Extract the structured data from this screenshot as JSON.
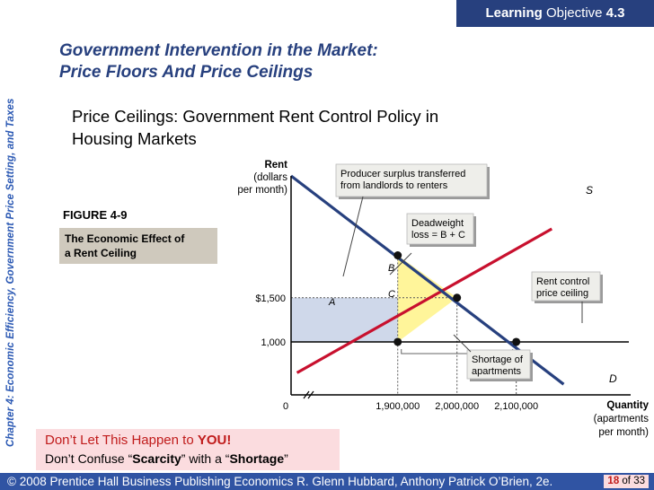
{
  "header": {
    "lo_word1": "Learning",
    "lo_word2": "Objective",
    "lo_num": "4.3"
  },
  "sidebar": {
    "chapter_label": "Chapter 4:  Economic Efficiency, Government Price Setting, and Taxes"
  },
  "slide": {
    "title_line1": "Government Intervention in the Market:",
    "title_line2": "Price Floors And Price Ceilings",
    "subtitle_line1": "Price Ceilings:  Government Rent Control Policy in",
    "subtitle_line2": "Housing Markets",
    "figure_number": "FIGURE 4-9",
    "figure_caption_line1": "The Economic Effect of",
    "figure_caption_line2": "a Rent Ceiling"
  },
  "warning": {
    "line1_prefix": "Don’t Let This Happen to ",
    "line1_bold": "YOU!",
    "line2_a": "Don’t Confuse “",
    "line2_b": "Scarcity",
    "line2_c": "” with a “",
    "line2_d": "Shortage",
    "line2_e": "”"
  },
  "footer": {
    "copyright": "© 2008 Prentice Hall Business Publishing   Economics  R. Glenn Hubbard, Anthony Patrick O’Brien, 2e.",
    "page_current": "18",
    "page_sep": " of ",
    "page_total": "33"
  },
  "chart_data": {
    "type": "line",
    "ylabel_lines": [
      "Rent",
      "(dollars",
      "per month)"
    ],
    "xlabel_lines": [
      "Quantity",
      "(apartments",
      "per month)"
    ],
    "x_ticks": [
      {
        "value": 0,
        "label": "0"
      },
      {
        "value": 1900000,
        "label": "1,900,000"
      },
      {
        "value": 2000000,
        "label": "2,000,000"
      },
      {
        "value": 2100000,
        "label": "2,100,000"
      }
    ],
    "y_ticks": [
      {
        "value": 1500,
        "label": "$1,500"
      },
      {
        "value": 1000,
        "label": "1,000"
      }
    ],
    "series": [
      {
        "name": "S",
        "color": "#c8102e",
        "points": [
          [
            1730000,
            650
          ],
          [
            2160000,
            2280
          ]
        ]
      },
      {
        "name": "D",
        "color": "#27407e",
        "points": [
          [
            1720000,
            2880
          ],
          [
            2180000,
            520
          ]
        ]
      },
      {
        "name": "",
        "color": "#000000",
        "points": [
          [
            1720000,
            1000
          ],
          [
            2290000,
            1000
          ]
        ]
      }
    ],
    "points_marked": [
      {
        "x": 1900000,
        "y": 1000
      },
      {
        "x": 1900000,
        "y": 1980
      },
      {
        "x": 2000000,
        "y": 1500
      },
      {
        "x": 2100000,
        "y": 1000
      }
    ],
    "areas": [
      {
        "label": "A",
        "color": "#cfd8ea",
        "description": "Producer surplus transferred from landlords to renters"
      },
      {
        "label": "B",
        "color": "#fff59a"
      },
      {
        "label": "C",
        "color": "#fff59a"
      }
    ],
    "callouts": {
      "producer_surplus": [
        "Producer surplus transferred",
        "from landlords to renters"
      ],
      "deadweight_line1": "Deadweight",
      "deadweight_line2": "loss = B + C",
      "rent_control": [
        "Rent control",
        "price ceiling"
      ],
      "shortage": [
        "Shortage of",
        "apartments"
      ]
    },
    "series_labels": {
      "supply": "S",
      "demand": "D"
    },
    "area_labels": {
      "a": "A",
      "b": "B",
      "c": "C"
    }
  }
}
